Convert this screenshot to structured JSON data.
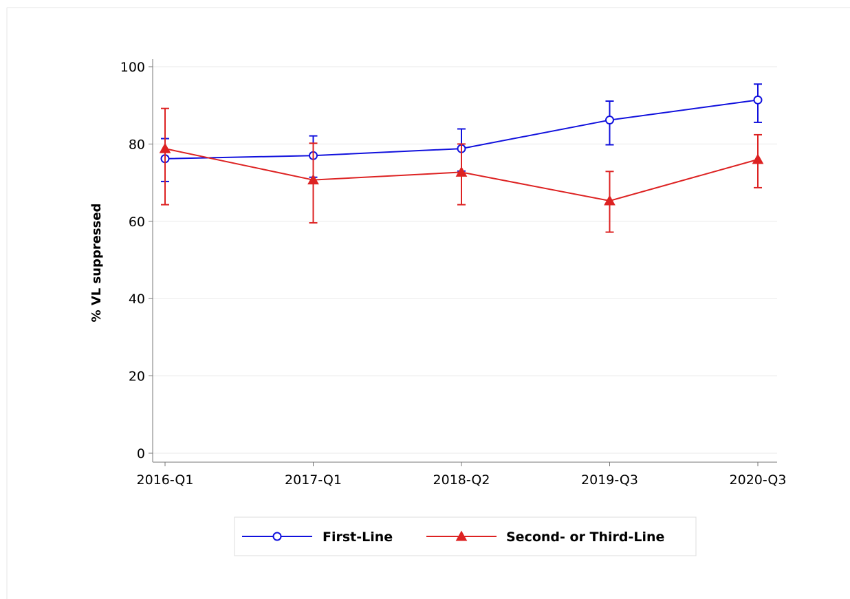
{
  "chart_data": {
    "type": "line",
    "title": "",
    "xlabel": "",
    "ylabel": "% VL suppressed",
    "categories": [
      "2016-Q1",
      "2017-Q1",
      "2018-Q2",
      "2019-Q3",
      "2020-Q3"
    ],
    "ylim": [
      0,
      100
    ],
    "yticks": [
      0,
      20,
      40,
      60,
      80,
      100
    ],
    "grid": true,
    "legend_position": "bottom",
    "series": [
      {
        "name": "First-Line",
        "color": "#1111dd",
        "marker": "circle-open",
        "values": [
          76.2,
          77.0,
          78.8,
          86.2,
          91.4
        ],
        "ci_low": [
          70.3,
          71.4,
          73.0,
          79.8,
          85.6
        ],
        "ci_high": [
          81.4,
          82.1,
          83.9,
          91.1,
          95.5
        ]
      },
      {
        "name": "Second- or Third-Line",
        "color": "#dd2222",
        "marker": "triangle-filled",
        "values": [
          78.8,
          70.7,
          72.7,
          65.3,
          76.0
        ],
        "ci_low": [
          64.3,
          59.6,
          64.3,
          57.2,
          68.7
        ],
        "ci_high": [
          89.2,
          80.2,
          80.0,
          72.9,
          82.4
        ]
      }
    ]
  }
}
